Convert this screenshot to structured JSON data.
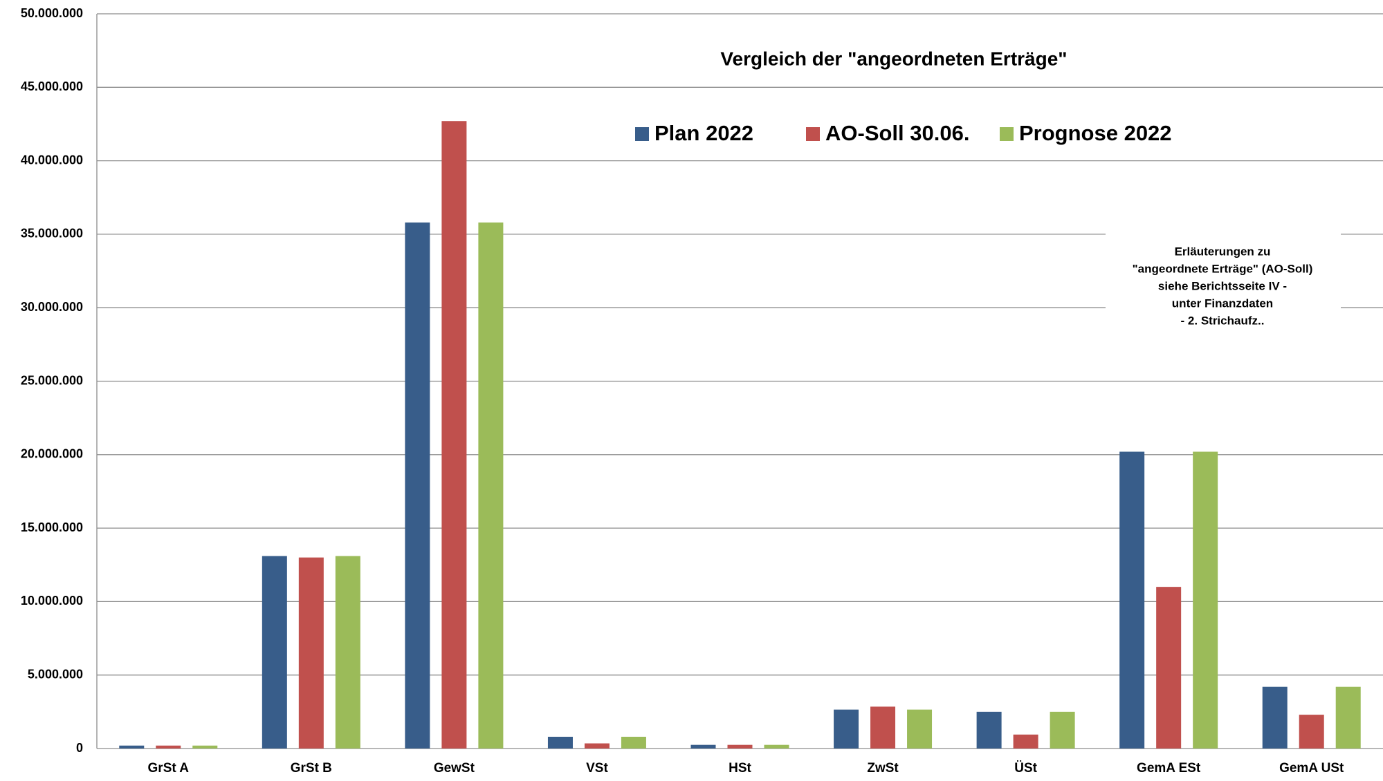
{
  "chart_data": {
    "type": "bar",
    "title": "Vergleich der \"angeordneten Erträge\"",
    "categories": [
      "GrSt A",
      "GrSt B",
      "GewSt",
      "VSt",
      "HSt",
      "ZwSt",
      "ÜSt",
      "GemA ESt",
      "GemA USt"
    ],
    "series": [
      {
        "name": "Plan 2022",
        "color": "#385d8a",
        "values": [
          200000,
          13100000,
          35800000,
          800000,
          250000,
          2650000,
          2500000,
          20200000,
          4200000
        ]
      },
      {
        "name": "AO-Soll 30.06.",
        "color": "#c0504d",
        "values": [
          200000,
          13000000,
          42700000,
          350000,
          250000,
          2850000,
          950000,
          11000000,
          2300000
        ]
      },
      {
        "name": "Prognose 2022",
        "color": "#9bbb59",
        "values": [
          200000,
          13100000,
          35800000,
          800000,
          250000,
          2650000,
          2500000,
          20200000,
          4200000
        ]
      }
    ],
    "ylim": [
      0,
      50000000
    ],
    "yticks": [
      0,
      {
        "value": 5000000,
        "label": "5.000.000"
      },
      {
        "value": 10000000,
        "label": "10.000.000"
      },
      {
        "value": 15000000,
        "label": "15.000.000"
      },
      {
        "value": 20000000,
        "label": "20.000.000"
      },
      {
        "value": 25000000,
        "label": "25.000.000"
      },
      {
        "value": 30000000,
        "label": "30.000.000"
      },
      {
        "value": 35000000,
        "label": "35.000.000"
      },
      {
        "value": 40000000,
        "label": "40.000.000"
      },
      {
        "value": 45000000,
        "label": "45.000.000"
      },
      {
        "value": 50000000,
        "label": "50.000.000"
      }
    ],
    "grid": true,
    "annotation": [
      "Erläuterungen zu",
      "\"angeordnete Erträge\" (AO-Soll)",
      "siehe  Berichtsseite IV -",
      "unter Finanzdaten",
      "- 2. Strichaufz.."
    ]
  }
}
